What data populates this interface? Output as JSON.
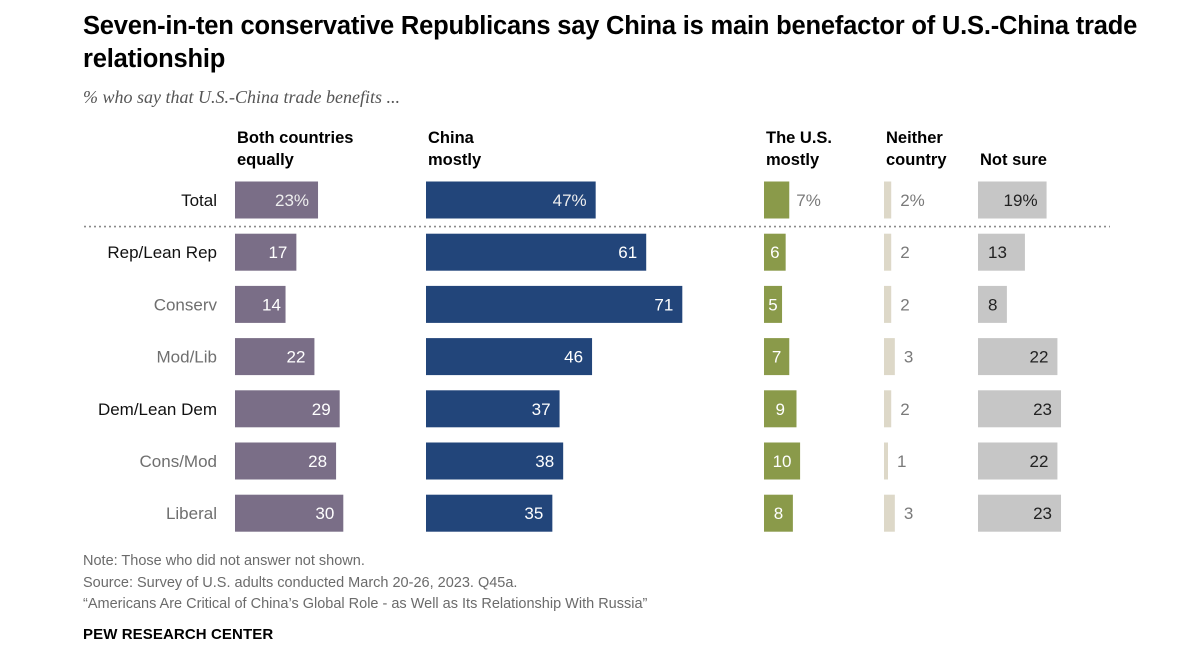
{
  "title": "Seven-in-ten conservative Republicans say China is main benefactor of U.S.-China trade relationship",
  "subtitle": "% who say that U.S.-China trade benefits ...",
  "notes": {
    "note": "Note: Those who did not answer not shown.",
    "source": "Source: Survey of U.S. adults conducted March 20-26, 2023. Q45a.",
    "report": "“Americans Are Critical of China’s Global Role - as Well as Its Relationship With Russia”"
  },
  "org": "PEW RESEARCH CENTER",
  "chart_data": {
    "type": "bar",
    "orientation": "horizontal",
    "layout": "grouped columns (one bar column per response)",
    "categories": [
      "Total",
      "Rep/Lean Rep",
      "Conserv",
      "Mod/Lib",
      "Dem/Lean Dem",
      "Cons/Mod",
      "Liberal"
    ],
    "category_style": [
      "normal",
      "normal",
      "sub",
      "sub",
      "normal",
      "sub",
      "sub"
    ],
    "value_labels_percent_row": "Total",
    "series": [
      {
        "name": "Both countries equally",
        "label_lines": [
          "Both countries",
          "equally"
        ],
        "color": "#7a6e87",
        "label_color": "#ffffff",
        "values": [
          23,
          17,
          14,
          22,
          29,
          28,
          30
        ]
      },
      {
        "name": "China mostly",
        "label_lines": [
          "China",
          "mostly"
        ],
        "color": "#22457a",
        "label_color": "#ffffff",
        "values": [
          47,
          61,
          71,
          46,
          37,
          38,
          35
        ]
      },
      {
        "name": "The U.S. mostly",
        "label_lines": [
          "The U.S.",
          "mostly"
        ],
        "color": "#8a9a4a",
        "label_color": "#ffffff",
        "values": [
          7,
          6,
          5,
          7,
          9,
          10,
          8
        ]
      },
      {
        "name": "Neither country",
        "label_lines": [
          "Neither",
          "country"
        ],
        "color": "#ddd8c8",
        "label_color": "#777777",
        "values": [
          2,
          2,
          2,
          3,
          2,
          1,
          3
        ]
      },
      {
        "name": "Not sure",
        "label_lines": [
          "Not sure"
        ],
        "color": "#c6c6c6",
        "label_color": "#222222",
        "values": [
          19,
          13,
          8,
          22,
          23,
          22,
          23
        ]
      }
    ],
    "divider_after": "Total",
    "grid": false,
    "legend": "column headers above bars"
  }
}
